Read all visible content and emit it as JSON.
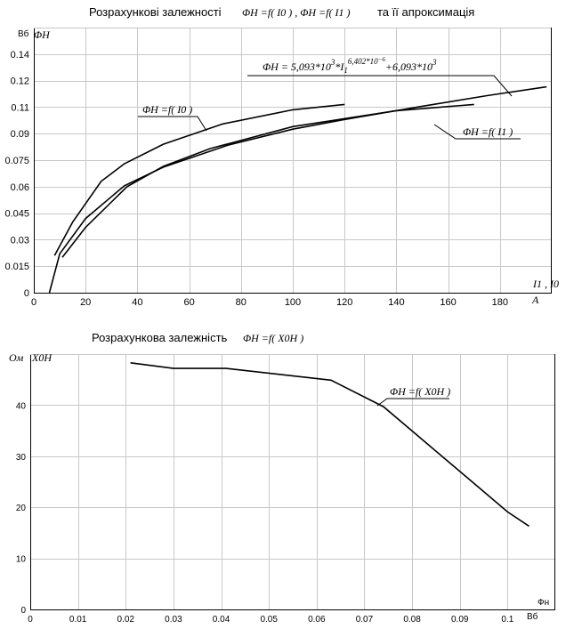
{
  "chart_data": [
    {
      "type": "line",
      "title": "Розрахункові залежності",
      "title_formula": "ΦН =f( I0 ) , ΦН =f( I1 )",
      "title_suffix": "та її апроксимація",
      "ylabel_unit": "Вб",
      "ylabel": "ΦН",
      "xlabel": "I1 , I0",
      "xlabel_unit": "А",
      "xlim": [
        0,
        200
      ],
      "ylim": [
        0,
        0.15
      ],
      "x_ticks": [
        0,
        20,
        40,
        60,
        80,
        100,
        120,
        140,
        160,
        180
      ],
      "x_tick_labels": [
        "0",
        "20",
        "40",
        "60",
        "80",
        "100",
        "120",
        "140",
        "160",
        "180"
      ],
      "y_ticks": [
        0,
        0.015,
        0.03,
        0.045,
        0.06,
        0.075,
        0.09,
        0.105,
        0.12,
        0.135
      ],
      "y_tick_labels": [
        "0",
        "0.015",
        "0.03",
        "0.045",
        "0.06",
        "0.075",
        "0.09",
        "0.11",
        "0.12",
        "0.14"
      ],
      "grid": true,
      "series": [
        {
          "name": "ΦН =f( I0 )",
          "x": [
            8,
            15,
            26,
            35,
            50,
            73,
            100,
            120
          ],
          "y": [
            0.021,
            0.04,
            0.063,
            0.073,
            0.084,
            0.0955,
            0.1035,
            0.1065
          ]
        },
        {
          "name": "ΦН =f( I1 )",
          "x": [
            11,
            20,
            36,
            50,
            68,
            100,
            140,
            170
          ],
          "y": [
            0.02,
            0.037,
            0.06,
            0.0715,
            0.0815,
            0.094,
            0.103,
            0.1065
          ]
        },
        {
          "name": "ΦН = 5,093*103*I16,402*10-6+6,093*103",
          "x": [
            6,
            10,
            20,
            35,
            50,
            75,
            100,
            120,
            150,
            175,
            198
          ],
          "y": [
            0.0,
            0.022,
            0.042,
            0.0605,
            0.071,
            0.0835,
            0.0925,
            0.098,
            0.1055,
            0.1115,
            0.1165
          ]
        }
      ],
      "annotations": {
        "label_I0": "ΦН =f( I0 )",
        "label_I1": "ΦН =f( I1 )",
        "formula_head": "ΦН",
        "formula_mid": " = 5,093*10",
        "formula_exp1": "3",
        "formula_mid2": "*I",
        "formula_sub": "1",
        "formula_exp2": "6,402*10",
        "formula_exp3": "−6",
        "formula_tail": "+6,093*10",
        "formula_exp4": "3"
      }
    },
    {
      "type": "line",
      "title": "Розрахункова залежність",
      "title_formula": "ΦН =f( X0Н )",
      "ylabel_unit": "Ом",
      "ylabel": "X0Н",
      "xlabel": "Фн",
      "xlabel_unit": "Вб",
      "xlim": [
        0,
        0.11
      ],
      "ylim": [
        0,
        50
      ],
      "x_ticks": [
        0,
        0.01,
        0.02,
        0.03,
        0.04,
        0.05,
        0.06,
        0.07,
        0.08,
        0.09,
        0.1
      ],
      "x_tick_labels": [
        "0",
        "0.01",
        "0.02",
        "0.03",
        "0.04",
        "0.05",
        "0.06",
        "0.07",
        "0.08",
        "0.09",
        "0.1"
      ],
      "y_ticks": [
        0,
        10,
        20,
        30,
        40
      ],
      "y_tick_labels": [
        "0",
        "10",
        "20",
        "30",
        "40"
      ],
      "grid": true,
      "series": [
        {
          "name": "ΦН =f( X0Н )",
          "x": [
            0.021,
            0.03,
            0.041,
            0.063,
            0.074,
            0.1,
            0.1045
          ],
          "y": [
            48.3,
            47.2,
            47.2,
            44.9,
            39.7,
            19.1,
            16.3
          ]
        }
      ],
      "annotations": {
        "label": "ΦН =f( X0Н )"
      }
    }
  ]
}
